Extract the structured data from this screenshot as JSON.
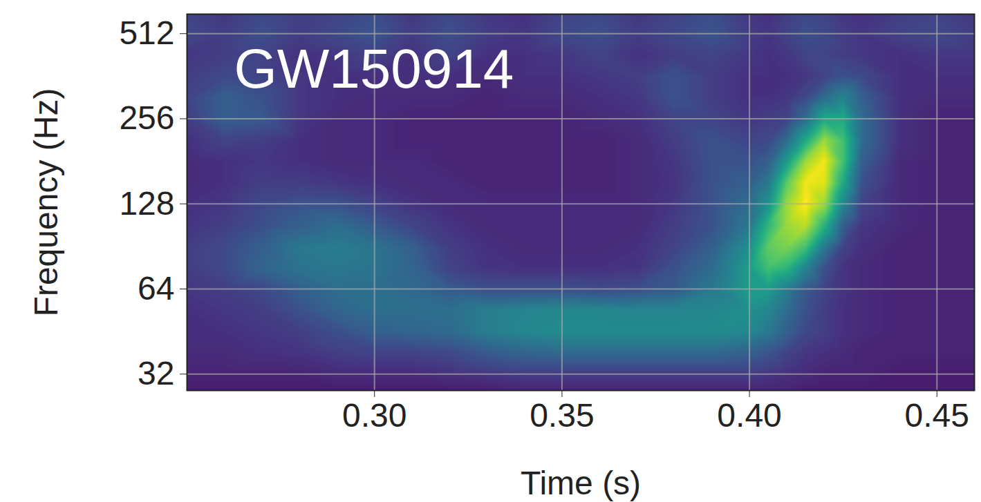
{
  "chart_data": {
    "type": "heatmap",
    "title": "GW150914",
    "x_label": "Time (s)",
    "y_label": "Frequency (Hz)",
    "log": "y",
    "grid": true,
    "color": "viridis",
    "color_range": [
      0,
      100
    ],
    "xlim": [
      0.25,
      0.46
    ],
    "ylim": [
      28,
      600
    ],
    "xticks": [
      {
        "value": 0.3,
        "label": "0.30"
      },
      {
        "value": 0.35,
        "label": "0.35"
      },
      {
        "value": 0.4,
        "label": "0.40"
      },
      {
        "value": 0.45,
        "label": "0.45"
      }
    ],
    "yticks": [
      32,
      64,
      128,
      256,
      512
    ],
    "x": [
      0.25,
      0.26,
      0.27,
      0.28,
      0.29,
      0.3,
      0.31,
      0.32,
      0.33,
      0.34,
      0.35,
      0.36,
      0.37,
      0.38,
      0.39,
      0.4,
      0.405,
      0.41,
      0.415,
      0.42,
      0.425,
      0.43,
      0.44,
      0.45,
      0.46
    ],
    "y": [
      28,
      32,
      38,
      45,
      54,
      64,
      76,
      90,
      108,
      128,
      152,
      181,
      215,
      256,
      304,
      362,
      431,
      512,
      600
    ],
    "values": [
      [
        8,
        8,
        8,
        8,
        8,
        8,
        8,
        8,
        8,
        10,
        10,
        10,
        10,
        10,
        10,
        10,
        10,
        10,
        8,
        8,
        8,
        8,
        8,
        8,
        8
      ],
      [
        10,
        10,
        10,
        10,
        12,
        12,
        12,
        14,
        16,
        18,
        18,
        18,
        18,
        18,
        18,
        18,
        16,
        14,
        12,
        10,
        10,
        10,
        8,
        8,
        8
      ],
      [
        12,
        12,
        14,
        15,
        18,
        20,
        20,
        22,
        28,
        32,
        34,
        34,
        34,
        34,
        34,
        30,
        26,
        20,
        16,
        14,
        12,
        10,
        10,
        10,
        10
      ],
      [
        14,
        14,
        16,
        18,
        24,
        30,
        32,
        34,
        42,
        46,
        48,
        48,
        48,
        48,
        48,
        46,
        40,
        30,
        22,
        18,
        14,
        12,
        10,
        10,
        10
      ],
      [
        14,
        16,
        18,
        25,
        32,
        36,
        36,
        36,
        42,
        45,
        46,
        46,
        45,
        45,
        46,
        50,
        46,
        35,
        25,
        18,
        14,
        12,
        10,
        10,
        10
      ],
      [
        16,
        18,
        22,
        30,
        36,
        36,
        34,
        28,
        24,
        24,
        24,
        22,
        24,
        28,
        40,
        55,
        55,
        42,
        28,
        20,
        15,
        12,
        10,
        10,
        10
      ],
      [
        18,
        22,
        32,
        38,
        40,
        38,
        32,
        20,
        15,
        14,
        14,
        14,
        15,
        25,
        35,
        55,
        70,
        65,
        45,
        25,
        15,
        12,
        10,
        10,
        10
      ],
      [
        18,
        22,
        30,
        40,
        42,
        38,
        30,
        18,
        14,
        12,
        12,
        12,
        14,
        20,
        30,
        50,
        75,
        80,
        70,
        40,
        20,
        14,
        10,
        10,
        10
      ],
      [
        15,
        18,
        24,
        30,
        35,
        28,
        20,
        15,
        12,
        12,
        12,
        12,
        12,
        18,
        25,
        40,
        65,
        85,
        90,
        65,
        30,
        16,
        12,
        10,
        10
      ],
      [
        14,
        16,
        22,
        25,
        25,
        20,
        15,
        12,
        12,
        12,
        12,
        12,
        12,
        16,
        25,
        35,
        50,
        85,
        100,
        85,
        45,
        20,
        12,
        10,
        10
      ],
      [
        12,
        14,
        18,
        18,
        16,
        14,
        12,
        12,
        10,
        10,
        10,
        10,
        12,
        15,
        25,
        30,
        40,
        75,
        98,
        95,
        60,
        25,
        12,
        10,
        10
      ],
      [
        12,
        14,
        16,
        14,
        12,
        12,
        12,
        10,
        10,
        10,
        10,
        10,
        12,
        16,
        25,
        25,
        30,
        55,
        85,
        98,
        70,
        30,
        12,
        10,
        10
      ],
      [
        14,
        20,
        18,
        14,
        12,
        12,
        10,
        10,
        10,
        10,
        10,
        10,
        12,
        18,
        25,
        20,
        22,
        35,
        60,
        85,
        70,
        35,
        14,
        10,
        10
      ],
      [
        18,
        30,
        28,
        16,
        12,
        12,
        10,
        10,
        10,
        10,
        10,
        12,
        14,
        20,
        20,
        16,
        18,
        20,
        35,
        60,
        60,
        35,
        14,
        10,
        10
      ],
      [
        20,
        30,
        25,
        16,
        14,
        12,
        12,
        12,
        10,
        12,
        12,
        14,
        16,
        25,
        18,
        14,
        14,
        16,
        22,
        35,
        45,
        30,
        14,
        12,
        12
      ],
      [
        18,
        22,
        20,
        16,
        14,
        14,
        14,
        14,
        12,
        14,
        14,
        16,
        18,
        25,
        18,
        14,
        14,
        14,
        16,
        20,
        25,
        22,
        14,
        14,
        14
      ],
      [
        16,
        18,
        20,
        14,
        16,
        20,
        14,
        20,
        14,
        14,
        16,
        20,
        14,
        18,
        20,
        16,
        14,
        16,
        20,
        20,
        18,
        16,
        14,
        16,
        16
      ],
      [
        22,
        18,
        24,
        18,
        22,
        26,
        18,
        24,
        18,
        16,
        22,
        24,
        18,
        22,
        26,
        18,
        16,
        20,
        24,
        22,
        18,
        16,
        20,
        22,
        18
      ],
      [
        20,
        16,
        22,
        18,
        20,
        24,
        16,
        22,
        16,
        14,
        20,
        22,
        16,
        20,
        24,
        16,
        14,
        18,
        22,
        20,
        16,
        14,
        18,
        20,
        16
      ]
    ]
  }
}
